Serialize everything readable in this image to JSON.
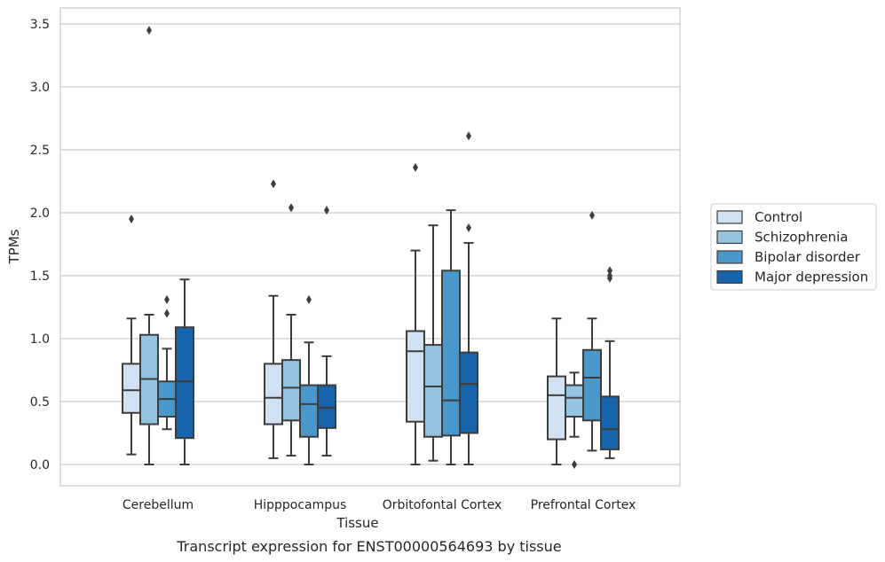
{
  "caption": "Transcript expression for ENST00000564693 by tissue",
  "chart_data": {
    "type": "box",
    "xlabel": "Tissue",
    "ylabel": "TPMs",
    "ylim": [
      -0.165,
      3.62
    ],
    "yticks": [
      0.0,
      0.5,
      1.0,
      1.5,
      2.0,
      2.5,
      3.0,
      3.5
    ],
    "ytick_labels": [
      "0.0",
      "0.5",
      "1.0",
      "1.5",
      "2.0",
      "2.5",
      "3.0",
      "3.5"
    ],
    "grid": "horizontal",
    "legend_placement": "right",
    "categories": [
      "Cerebellum",
      "Hipppocampus",
      "Orbitofontal Cortex",
      "Prefrontal Cortex"
    ],
    "series": [
      {
        "name": "Control",
        "color": "#d0e1f2",
        "boxes": [
          {
            "whislo": 0.08,
            "q1": 0.41,
            "med": 0.59,
            "q3": 0.8,
            "whishi": 1.16,
            "fliers": [
              1.95
            ]
          },
          {
            "whislo": 0.05,
            "q1": 0.32,
            "med": 0.53,
            "q3": 0.8,
            "whishi": 1.34,
            "fliers": [
              2.23
            ]
          },
          {
            "whislo": 0.0,
            "q1": 0.34,
            "med": 0.9,
            "q3": 1.06,
            "whishi": 1.7,
            "fliers": [
              2.36
            ]
          },
          {
            "whislo": 0.0,
            "q1": 0.2,
            "med": 0.55,
            "q3": 0.7,
            "whishi": 1.16,
            "fliers": []
          }
        ]
      },
      {
        "name": "Schizophrenia",
        "color": "#94c4df",
        "boxes": [
          {
            "whislo": 0.0,
            "q1": 0.32,
            "med": 0.68,
            "q3": 1.03,
            "whishi": 1.19,
            "fliers": [
              3.45
            ]
          },
          {
            "whislo": 0.07,
            "q1": 0.35,
            "med": 0.61,
            "q3": 0.83,
            "whishi": 1.19,
            "fliers": [
              2.04
            ]
          },
          {
            "whislo": 0.03,
            "q1": 0.22,
            "med": 0.62,
            "q3": 0.95,
            "whishi": 1.9,
            "fliers": []
          },
          {
            "whislo": 0.22,
            "q1": 0.38,
            "med": 0.53,
            "q3": 0.63,
            "whishi": 0.73,
            "fliers": [
              0.0
            ]
          }
        ]
      },
      {
        "name": "Bipolar disorder",
        "color": "#4a98c9",
        "boxes": [
          {
            "whislo": 0.28,
            "q1": 0.38,
            "med": 0.52,
            "q3": 0.66,
            "whishi": 0.92,
            "fliers": [
              1.31,
              1.2
            ]
          },
          {
            "whislo": 0.0,
            "q1": 0.22,
            "med": 0.48,
            "q3": 0.63,
            "whishi": 0.97,
            "fliers": [
              1.31
            ]
          },
          {
            "whislo": 0.0,
            "q1": 0.23,
            "med": 0.51,
            "q3": 1.54,
            "whishi": 2.02,
            "fliers": []
          },
          {
            "whislo": 0.11,
            "q1": 0.35,
            "med": 0.69,
            "q3": 0.91,
            "whishi": 1.16,
            "fliers": [
              1.98
            ]
          }
        ]
      },
      {
        "name": "Major depression",
        "color": "#1764ab",
        "boxes": [
          {
            "whislo": 0.0,
            "q1": 0.21,
            "med": 0.66,
            "q3": 1.09,
            "whishi": 1.47,
            "fliers": []
          },
          {
            "whislo": 0.07,
            "q1": 0.29,
            "med": 0.45,
            "q3": 0.63,
            "whishi": 0.86,
            "fliers": [
              2.02
            ]
          },
          {
            "whislo": 0.0,
            "q1": 0.25,
            "med": 0.64,
            "q3": 0.89,
            "whishi": 1.76,
            "fliers": [
              2.61,
              1.88
            ]
          },
          {
            "whislo": 0.05,
            "q1": 0.12,
            "med": 0.28,
            "q3": 0.54,
            "whishi": 0.98,
            "fliers": [
              1.5,
              1.48,
              1.54
            ]
          }
        ]
      }
    ]
  }
}
